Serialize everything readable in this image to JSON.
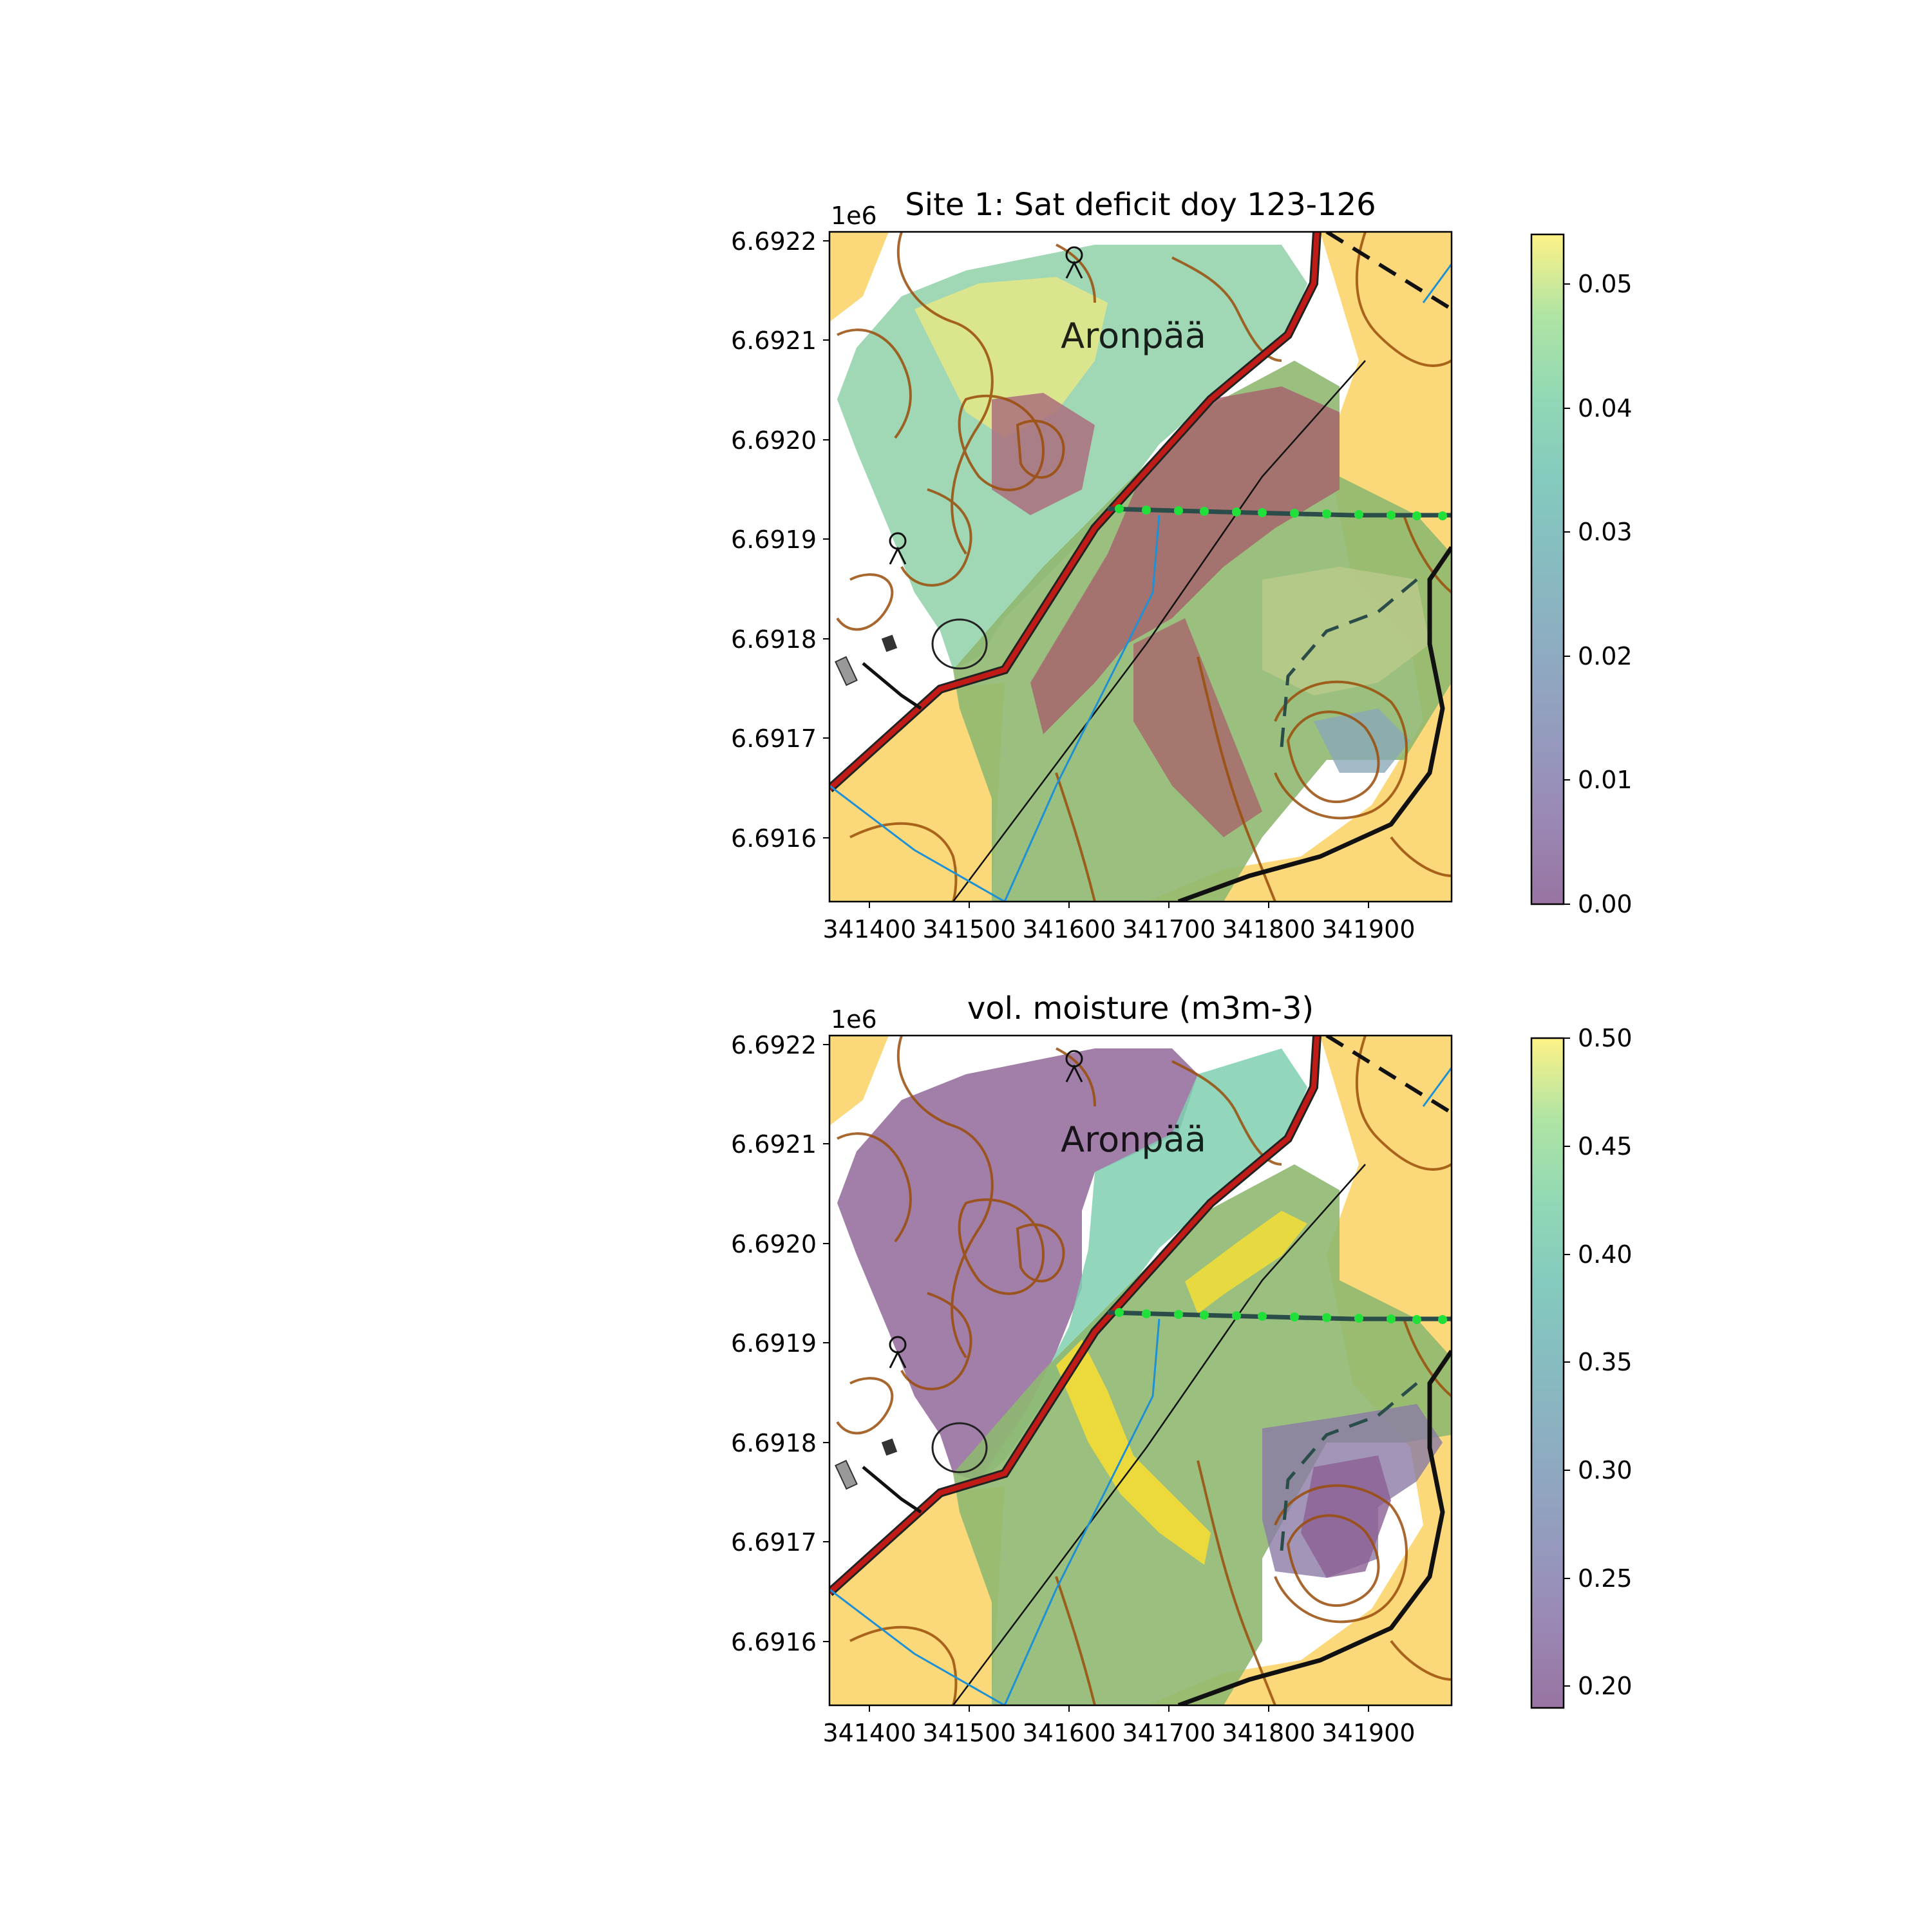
{
  "figure": {
    "panels": [
      {
        "id": "top",
        "title": "Site 1: Sat deficit doy 123-126",
        "offset_label": "1e6",
        "place_label": "Aronpää",
        "x_ticks": [
          "341400",
          "341500",
          "341600",
          "341700",
          "341800",
          "341900"
        ],
        "y_ticks": [
          "6.6922",
          "6.6921",
          "6.6920",
          "6.6919",
          "6.6918",
          "6.6917",
          "6.6916"
        ],
        "colorbar": {
          "ticks": [
            "0.05",
            "0.04",
            "0.03",
            "0.02",
            "0.01",
            "0.00"
          ],
          "range": [
            0.0,
            0.054
          ]
        }
      },
      {
        "id": "bottom",
        "title": "vol. moisture (m3m-3)",
        "offset_label": "1e6",
        "place_label": "Aronpää",
        "x_ticks": [
          "341400",
          "341500",
          "341600",
          "341700",
          "341800",
          "341900"
        ],
        "y_ticks": [
          "6.6922",
          "6.6921",
          "6.6920",
          "6.6919",
          "6.6918",
          "6.6917",
          "6.6916"
        ],
        "colorbar": {
          "ticks": [
            "0.50",
            "0.45",
            "0.40",
            "0.35",
            "0.30",
            "0.25",
            "0.20"
          ],
          "range": [
            0.19,
            0.5
          ]
        }
      }
    ],
    "colormap": "viridis",
    "colors": {
      "field": "#fbd97a",
      "contour": "#9a4d0a",
      "road": "#c11b17",
      "stream": "#1e90d6",
      "ditch_marker": "#22e03a"
    }
  }
}
